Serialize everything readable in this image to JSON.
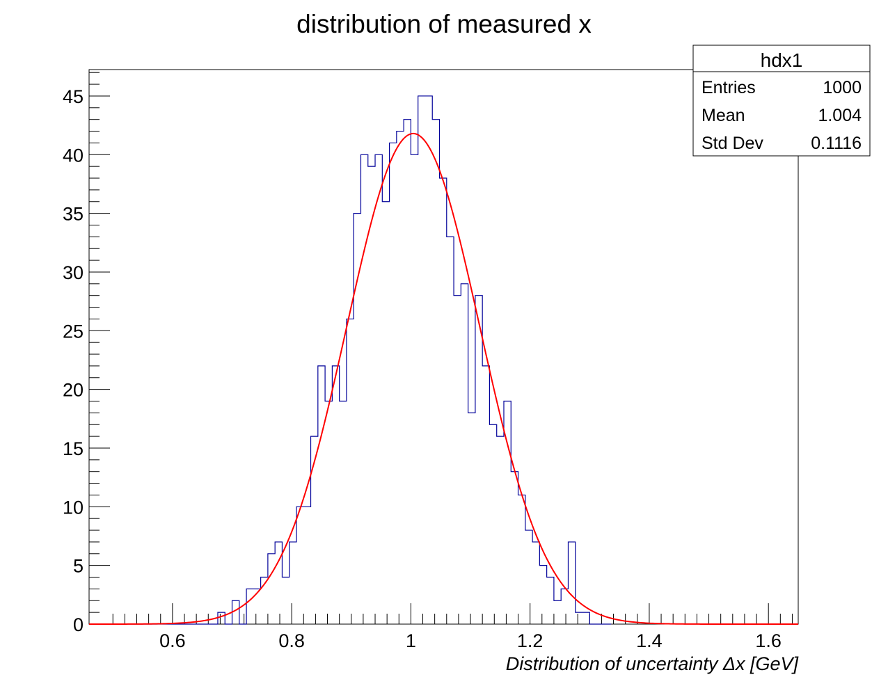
{
  "chart_data": {
    "type": "histogram",
    "title": "distribution of measured x",
    "xlabel": "Distribution of uncertainty Δx [GeV]",
    "ylabel": "",
    "xlim": [
      0.46,
      1.65
    ],
    "ylim": [
      0,
      47.25
    ],
    "x_ticks": [
      "0.6",
      "0.8",
      "1",
      "1.2",
      "1.4",
      "1.6"
    ],
    "x_tick_values": [
      0.6,
      0.8,
      1.0,
      1.2,
      1.4,
      1.6
    ],
    "y_ticks": [
      "0",
      "5",
      "10",
      "15",
      "20",
      "25",
      "30",
      "35",
      "40",
      "45"
    ],
    "y_tick_values": [
      0,
      5,
      10,
      15,
      20,
      25,
      30,
      35,
      40,
      45
    ],
    "histogram": {
      "name": "hdx1",
      "color": "#000099",
      "bin_edges": [
        0.46,
        0.472,
        0.484,
        0.496,
        0.508,
        0.52,
        0.532,
        0.544,
        0.556,
        0.568,
        0.58,
        0.592,
        0.604,
        0.616,
        0.628,
        0.64,
        0.652,
        0.664,
        0.676,
        0.688,
        0.7,
        0.712,
        0.724,
        0.736,
        0.748,
        0.76,
        0.772,
        0.784,
        0.796,
        0.808,
        0.82,
        0.832,
        0.844,
        0.856,
        0.868,
        0.88,
        0.892,
        0.904,
        0.916,
        0.928,
        0.94,
        0.952,
        0.964,
        0.976,
        0.988,
        1.0,
        1.012,
        1.024,
        1.036,
        1.048,
        1.06,
        1.072,
        1.084,
        1.096,
        1.108,
        1.12,
        1.132,
        1.144,
        1.156,
        1.168,
        1.18,
        1.192,
        1.204,
        1.216,
        1.228,
        1.24,
        1.252,
        1.264,
        1.276,
        1.288,
        1.3,
        1.312,
        1.324,
        1.336
      ],
      "counts": [
        0,
        0,
        0,
        0,
        0,
        0,
        0,
        0,
        0,
        0,
        0,
        0,
        0,
        0,
        0,
        0,
        0,
        0,
        1,
        0,
        2,
        0,
        3,
        3,
        4,
        6,
        7,
        4,
        7,
        10,
        10,
        16,
        22,
        19,
        22,
        19,
        26,
        35,
        40,
        39,
        40,
        36,
        41,
        42,
        43,
        40,
        45,
        45,
        43,
        38,
        33,
        28,
        29,
        18,
        28,
        22,
        17,
        16,
        19,
        13,
        11,
        8,
        7,
        5,
        4,
        2,
        3,
        7,
        1,
        1,
        0,
        0,
        0
      ]
    },
    "fit": {
      "type": "gaussian",
      "color": "#ff0000",
      "constant": 41.8,
      "mean": 1.004,
      "sigma": 0.1116
    },
    "stats_box": {
      "title": "hdx1",
      "rows": [
        {
          "label": "Entries",
          "value": "1000"
        },
        {
          "label": "Mean",
          "value": "1.004"
        },
        {
          "label": "Std Dev",
          "value": "0.1116"
        }
      ]
    }
  }
}
